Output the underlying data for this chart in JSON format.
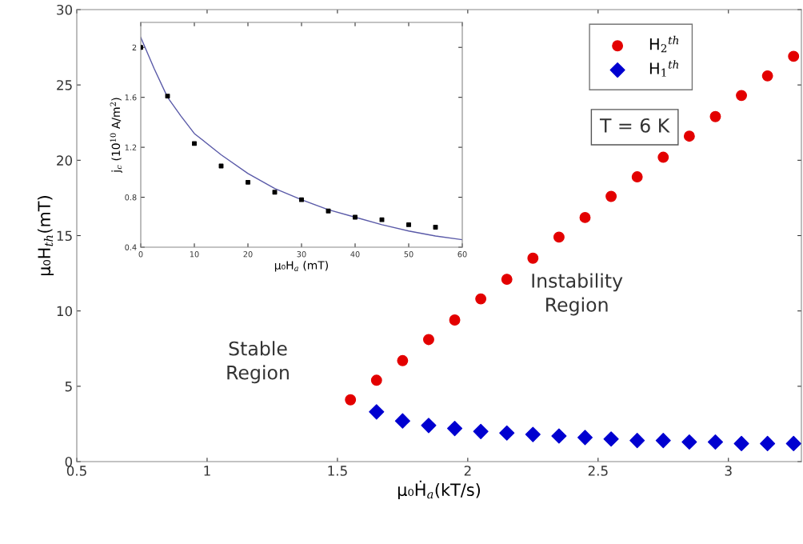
{
  "chart_data": [
    {
      "type": "scatter",
      "xlabel": "μ₀Ḣ$_{a}$(kT/s)",
      "ylabel": "μ₀H$_{th}$(mT)",
      "xlim": [
        0.5,
        3.28
      ],
      "xticks": [
        0.5,
        1,
        1.5,
        2,
        2.5,
        3
      ],
      "ylim": [
        0,
        30
      ],
      "yticks": [
        0,
        5,
        10,
        15,
        20,
        25,
        30
      ],
      "legend": "top right",
      "annotations": [
        "T = 6 K",
        "Stable\nRegion",
        "Instability\nRegion"
      ],
      "series": [
        {
          "name": "H$_{2}$$^{th}$",
          "color": "#e30000",
          "marker": "circle",
          "x": [
            1.55,
            1.65,
            1.75,
            1.85,
            1.95,
            2.05,
            2.15,
            2.25,
            2.35,
            2.45,
            2.55,
            2.65,
            2.75,
            2.85,
            2.95,
            3.05,
            3.15,
            3.25
          ],
          "values": [
            4.1,
            5.4,
            6.7,
            8.1,
            9.4,
            10.8,
            12.1,
            13.5,
            14.9,
            16.2,
            17.6,
            18.9,
            20.2,
            21.6,
            22.9,
            24.3,
            25.6,
            26.9
          ]
        },
        {
          "name": "H$_{1}$$^{th}$",
          "color": "#0000d0",
          "marker": "diamond",
          "x": [
            1.65,
            1.75,
            1.85,
            1.95,
            2.05,
            2.15,
            2.25,
            2.35,
            2.45,
            2.55,
            2.65,
            2.75,
            2.85,
            2.95,
            3.05,
            3.15,
            3.25
          ],
          "values": [
            3.3,
            2.7,
            2.4,
            2.2,
            2.0,
            1.9,
            1.8,
            1.7,
            1.6,
            1.5,
            1.4,
            1.4,
            1.3,
            1.3,
            1.2,
            1.2,
            1.2
          ]
        }
      ]
    },
    {
      "type": "scatter",
      "xlabel": "μ₀H$_{a}$ (mT)",
      "ylabel": "j$_{c}$ (10$^{10}$ A/m$^{2}$)",
      "xlim": [
        0,
        60
      ],
      "xticks": [
        0,
        10,
        20,
        30,
        40,
        50,
        60
      ],
      "ylim": [
        0.4,
        2.2
      ],
      "yticks": [
        0.4,
        0.8,
        1.2,
        1.6,
        2
      ],
      "series": [
        {
          "color": "#000000",
          "marker": "square",
          "x": [
            0,
            5,
            10,
            15,
            20,
            25,
            30,
            35,
            40,
            45,
            50,
            55
          ],
          "values": [
            2.0,
            1.61,
            1.23,
            1.05,
            0.92,
            0.84,
            0.78,
            0.69,
            0.64,
            0.62,
            0.58,
            0.56
          ]
        },
        {
          "type": "line",
          "color": "#5a5aa8",
          "line_style": "solid",
          "x": [
            0,
            2.5,
            5,
            7.5,
            10,
            15,
            20,
            25,
            30,
            35,
            40,
            45,
            50,
            55,
            60
          ],
          "values": [
            2.08,
            1.83,
            1.6,
            1.45,
            1.31,
            1.14,
            0.99,
            0.87,
            0.78,
            0.7,
            0.64,
            0.58,
            0.53,
            0.49,
            0.46
          ]
        }
      ]
    }
  ]
}
